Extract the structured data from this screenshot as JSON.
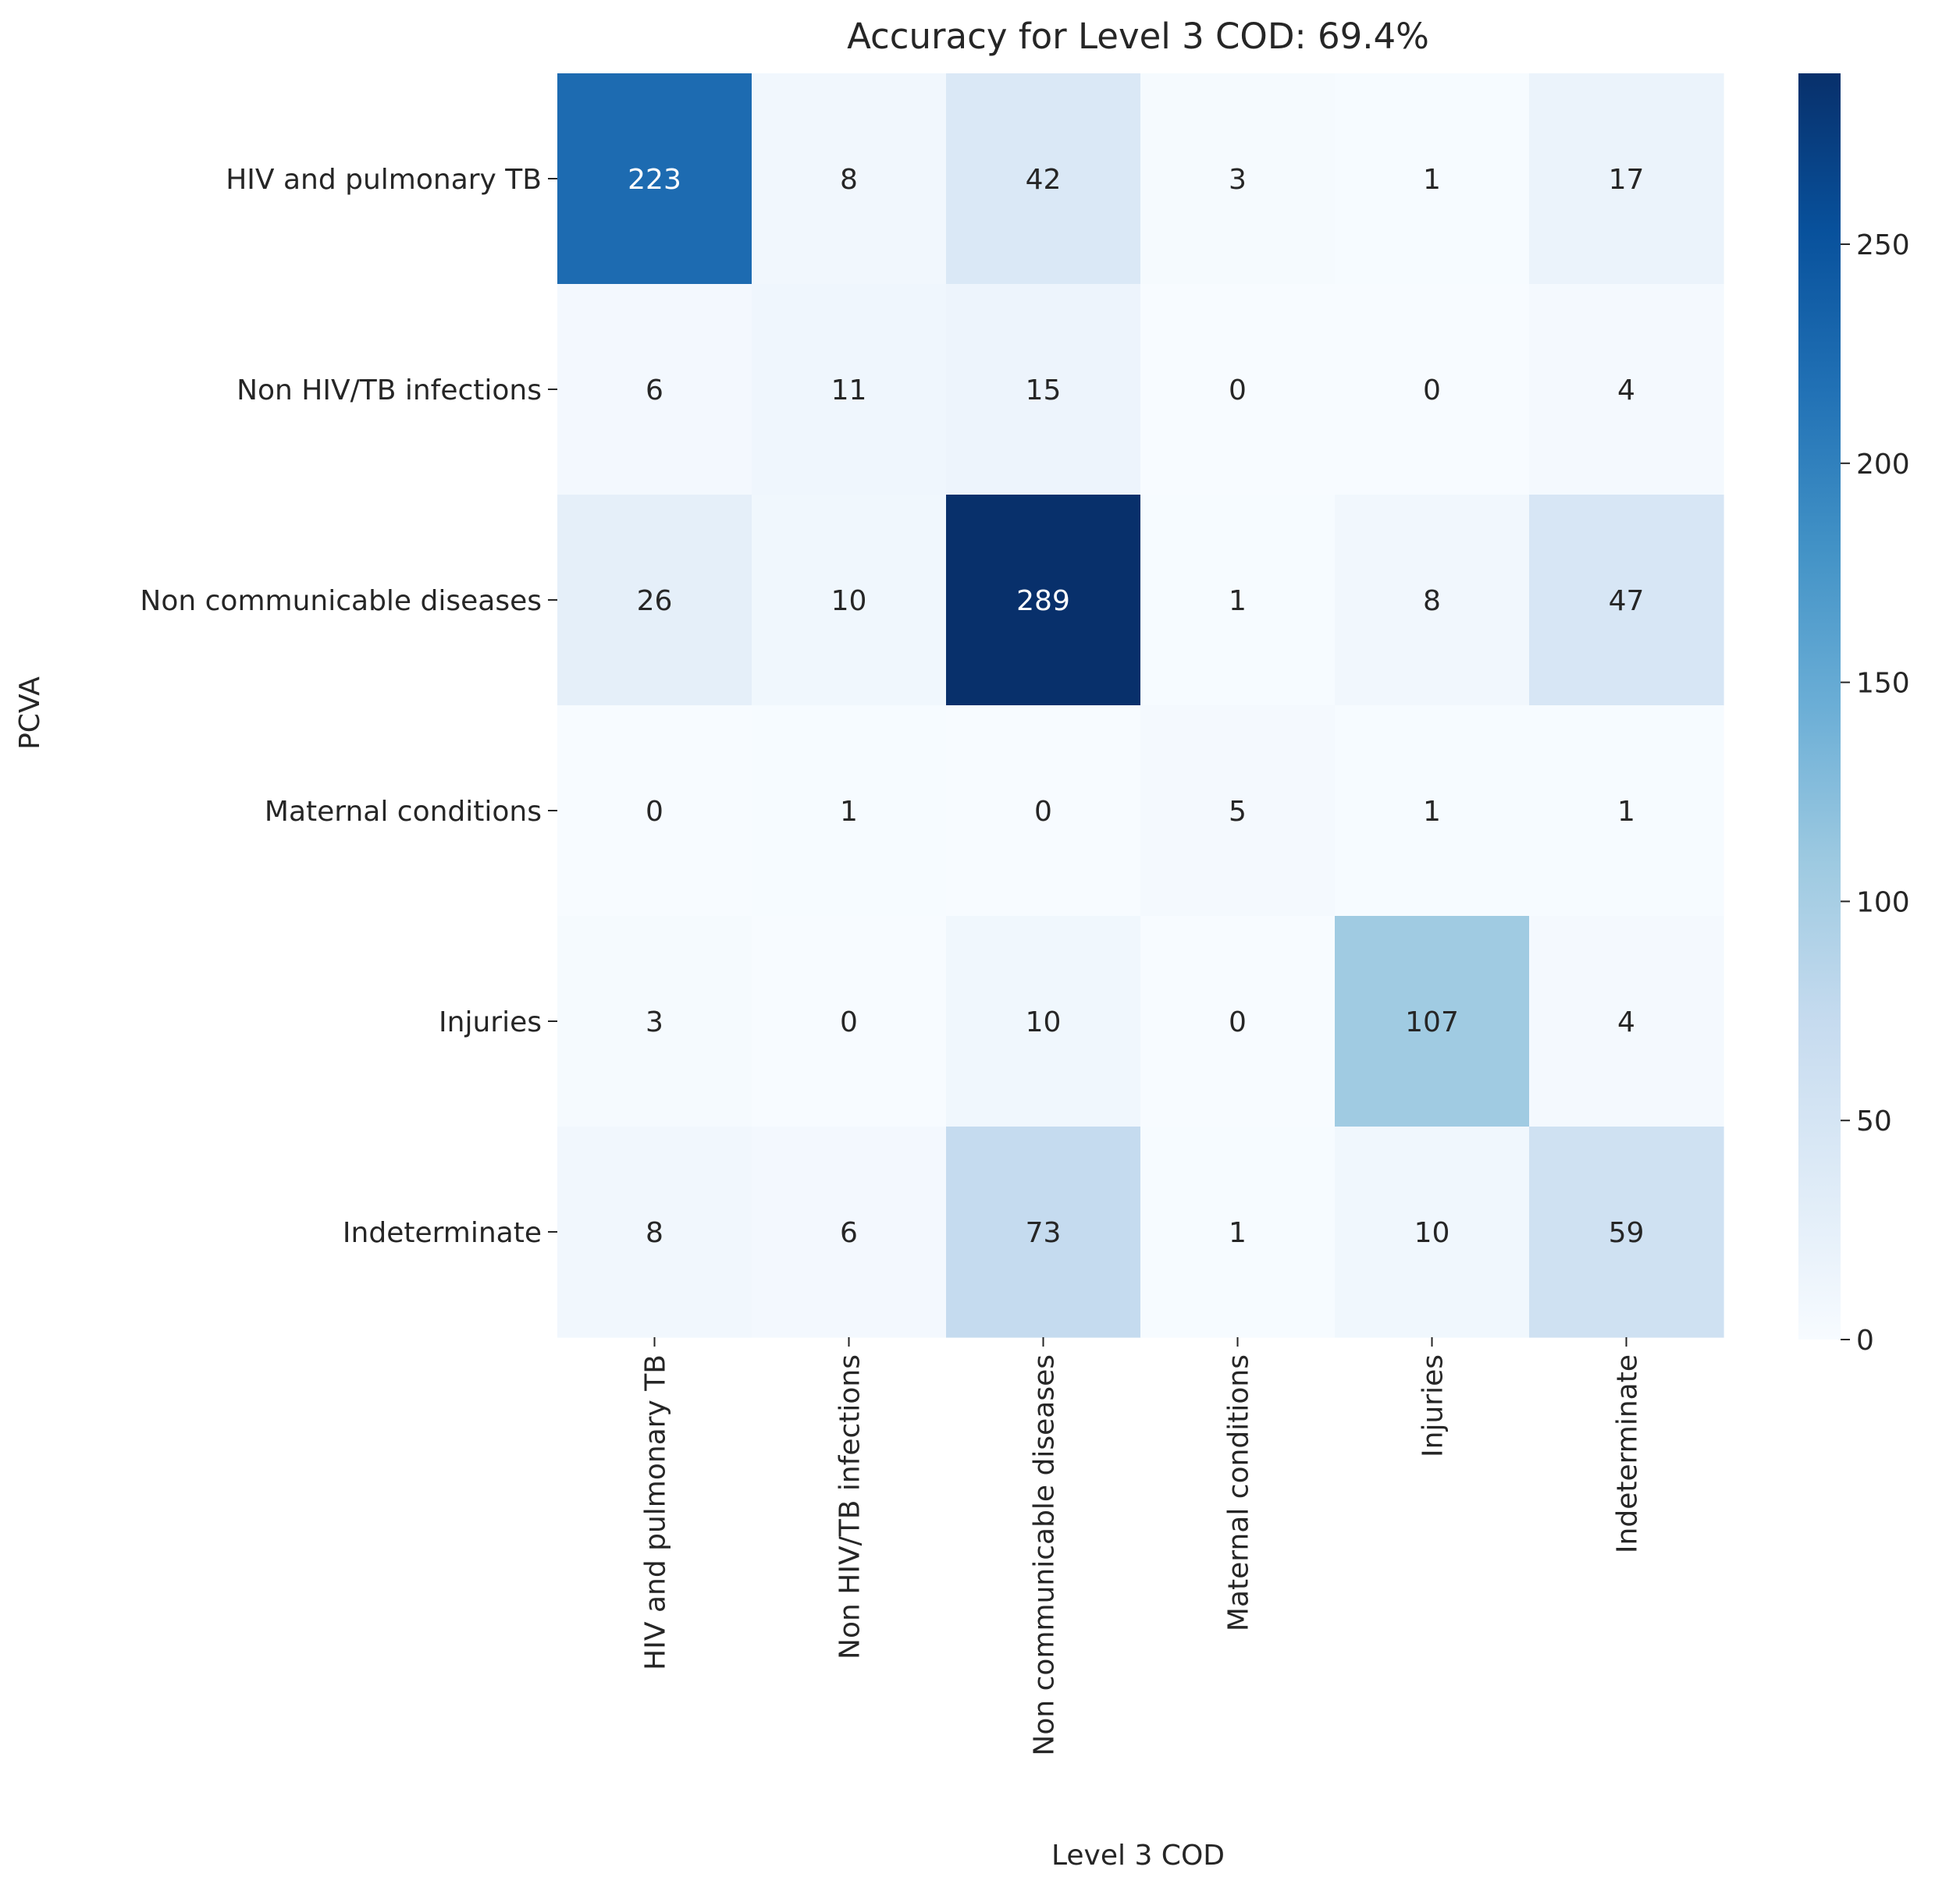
{
  "chart_data": {
    "type": "heatmap",
    "title": "Accuracy for Level 3 COD: 69.4%",
    "xlabel": "Level 3 COD",
    "ylabel": "PCVA",
    "x_categories": [
      "HIV and pulmonary TB",
      "Non HIV/TB infections",
      "Non communicable diseases",
      "Maternal conditions",
      "Injuries",
      "Indeterminate"
    ],
    "y_categories": [
      "HIV and pulmonary TB",
      "Non HIV/TB infections",
      "Non communicable diseases",
      "Maternal conditions",
      "Injuries",
      "Indeterminate"
    ],
    "values": [
      [
        223,
        8,
        42,
        3,
        1,
        17
      ],
      [
        6,
        11,
        15,
        0,
        0,
        4
      ],
      [
        26,
        10,
        289,
        1,
        8,
        47
      ],
      [
        0,
        1,
        0,
        5,
        1,
        1
      ],
      [
        3,
        0,
        10,
        0,
        107,
        4
      ],
      [
        8,
        6,
        73,
        1,
        10,
        59
      ]
    ],
    "colorbar": {
      "colormap": "Blues",
      "range": [
        0,
        289
      ],
      "ticks": [
        0,
        50,
        100,
        150,
        200,
        250
      ],
      "tick_labels": [
        "0",
        "50",
        "100",
        "150",
        "200",
        "250"
      ]
    }
  }
}
